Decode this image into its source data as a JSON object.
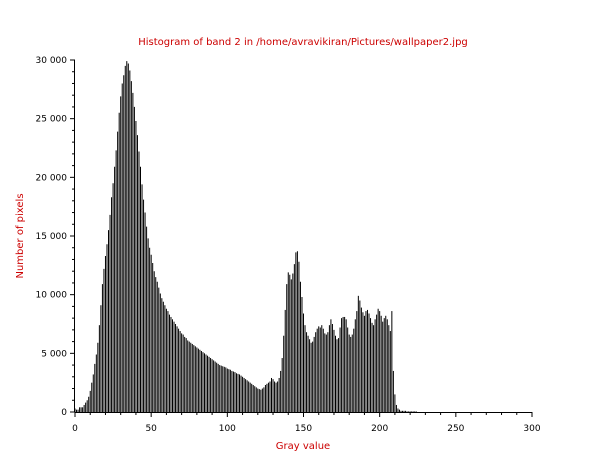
{
  "chart_data": {
    "type": "bar",
    "title": "Histogram of band 2 in /home/avravikiran/Pictures/wallpaper2.jpg",
    "xlabel": "Gray value",
    "ylabel": "Number of pixels",
    "xlim": [
      0,
      300
    ],
    "ylim": [
      0,
      30000
    ],
    "xticks": [
      "0",
      "50",
      "100",
      "150",
      "200",
      "250",
      "300"
    ],
    "yticks": [
      "0",
      "5 000",
      "10 000",
      "15 000",
      "20 000",
      "25 000",
      "30 000"
    ],
    "grid": false,
    "bin_start": 0,
    "values": [
      300,
      200,
      200,
      400,
      400,
      400,
      600,
      800,
      1000,
      1300,
      1800,
      2500,
      3200,
      4100,
      4900,
      5900,
      7400,
      9100,
      10900,
      12200,
      13300,
      14300,
      15500,
      16800,
      18300,
      19500,
      20900,
      22300,
      23900,
      25500,
      26900,
      28000,
      28700,
      29500,
      29900,
      29700,
      29100,
      28200,
      27200,
      26000,
      24800,
      23600,
      22200,
      20900,
      19400,
      18100,
      17000,
      15800,
      14800,
      14000,
      13400,
      12700,
      12000,
      11500,
      11100,
      10600,
      10100,
      9700,
      9400,
      9100,
      8800,
      8600,
      8300,
      8100,
      7900,
      7700,
      7500,
      7300,
      7100,
      6900,
      6700,
      6600,
      6400,
      6300,
      6100,
      6000,
      5900,
      5800,
      5700,
      5600,
      5500,
      5400,
      5300,
      5200,
      5100,
      5000,
      4900,
      4800,
      4700,
      4600,
      4500,
      4400,
      4300,
      4200,
      4100,
      4000,
      3950,
      3900,
      3850,
      3800,
      3700,
      3650,
      3600,
      3500,
      3450,
      3400,
      3300,
      3250,
      3200,
      3100,
      3000,
      2900,
      2800,
      2700,
      2600,
      2500,
      2400,
      2300,
      2200,
      2100,
      2000,
      1950,
      1900,
      2000,
      2100,
      2300,
      2400,
      2500,
      2600,
      2900,
      2800,
      2600,
      2500,
      2600,
      2900,
      3500,
      4600,
      6500,
      8700,
      10900,
      11900,
      11700,
      11300,
      11800,
      12600,
      13600,
      13700,
      12800,
      11100,
      9800,
      8400,
      7400,
      6800,
      6500,
      6200,
      5900,
      6000,
      6400,
      6800,
      7100,
      7300,
      7200,
      7400,
      7100,
      6700,
      6600,
      6800,
      7400,
      7900,
      7500,
      7000,
      6500,
      6200,
      6300,
      7200,
      8000,
      8100,
      8100,
      7900,
      7200,
      6600,
      6400,
      6600,
      7100,
      7900,
      8600,
      9900,
      9500,
      8900,
      8500,
      8200,
      8600,
      8700,
      8400,
      8000,
      7600,
      7400,
      7900,
      8300,
      8800,
      8600,
      8200,
      7700,
      8000,
      8200,
      7900,
      7400,
      6900,
      8600,
      3500,
      1500,
      600,
      300,
      200,
      100,
      100,
      100,
      100,
      50,
      50,
      50,
      50,
      50,
      50,
      50
    ]
  }
}
